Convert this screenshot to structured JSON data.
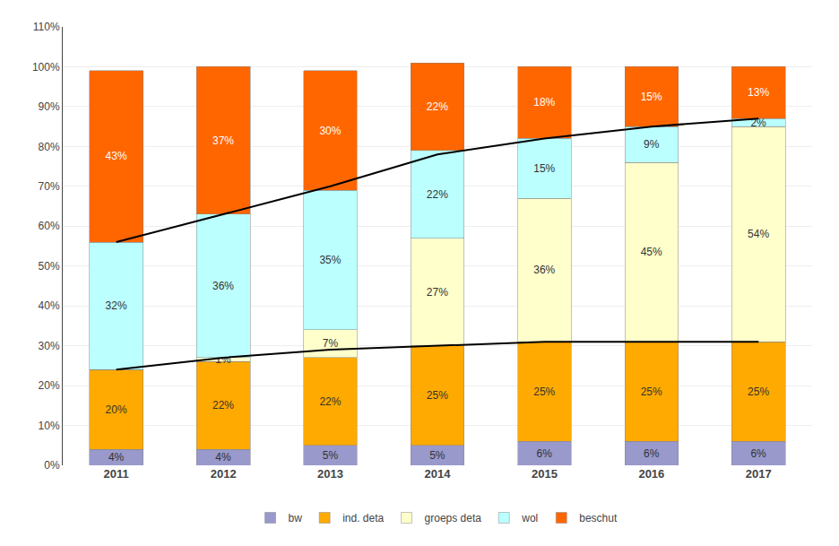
{
  "chart_data": {
    "type": "bar",
    "stacked": true,
    "categories": [
      "2011",
      "2012",
      "2013",
      "2014",
      "2015",
      "2016",
      "2017"
    ],
    "series": [
      {
        "name": "bw",
        "color": "#9999CC",
        "values": [
          4,
          4,
          5,
          5,
          6,
          6,
          6
        ],
        "value_labels": [
          "4%",
          "4%",
          "5%",
          "5%",
          "6%",
          "6%",
          "6%"
        ]
      },
      {
        "name": "ind. deta",
        "color": "#FFAA00",
        "values": [
          20,
          22,
          22,
          25,
          25,
          25,
          25
        ],
        "value_labels": [
          "20%",
          "22%",
          "22%",
          "25%",
          "25%",
          "25%",
          "25%"
        ]
      },
      {
        "name": "groeps deta",
        "color": "#FFFFCC",
        "values": [
          0,
          1,
          7,
          27,
          36,
          45,
          54
        ],
        "value_labels": [
          null,
          "1%",
          "7%",
          "27%",
          "36%",
          "45%",
          "54%"
        ]
      },
      {
        "name": "wol",
        "color": "#BBFFFF",
        "values": [
          32,
          36,
          35,
          22,
          15,
          9,
          2
        ],
        "value_labels": [
          "32%",
          "36%",
          "35%",
          "22%",
          "15%",
          "9%",
          "2%"
        ]
      },
      {
        "name": "beschut",
        "color": "#FF6600",
        "values": [
          43,
          37,
          30,
          22,
          18,
          15,
          13
        ],
        "value_labels": [
          "43%",
          "37%",
          "30%",
          "22%",
          "18%",
          "15%",
          "13%"
        ]
      },
      {
        "type": "line",
        "color": "#000000",
        "values": [
          24,
          27,
          29,
          30,
          31,
          31,
          31
        ]
      },
      {
        "type": "line",
        "color": "#000000",
        "values": [
          56,
          63,
          70,
          78,
          82,
          85,
          87
        ]
      }
    ],
    "ylim": [
      0,
      110
    ],
    "yticks": [
      {
        "value": 0,
        "label": "0%"
      },
      {
        "value": 10,
        "label": "10%"
      },
      {
        "value": 20,
        "label": "20%"
      },
      {
        "value": 30,
        "label": "30%"
      },
      {
        "value": 40,
        "label": "40%"
      },
      {
        "value": 50,
        "label": "50%"
      },
      {
        "value": 60,
        "label": "60%"
      },
      {
        "value": 70,
        "label": "70%"
      },
      {
        "value": 80,
        "label": "80%"
      },
      {
        "value": 90,
        "label": "90%"
      },
      {
        "value": 100,
        "label": "100%"
      },
      {
        "value": 110,
        "label": "110%"
      }
    ],
    "grid": true,
    "legend": "bottom",
    "data_labels": true
  }
}
